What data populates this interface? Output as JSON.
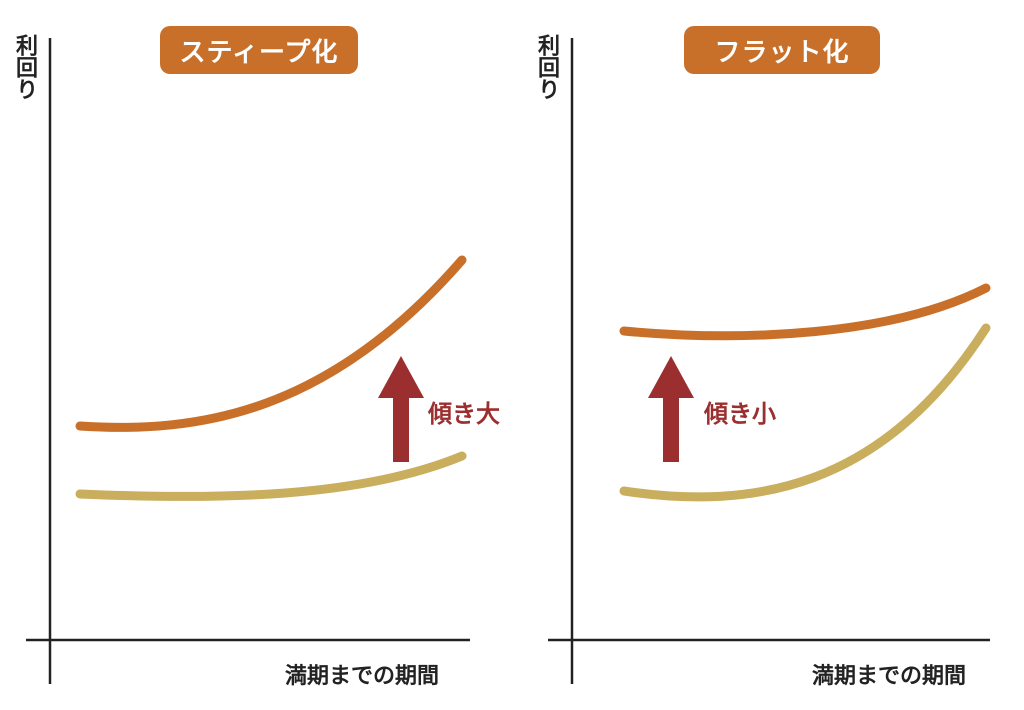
{
  "colors": {
    "upper_curve": "#C8702A",
    "lower_curve": "#C9AE5E",
    "arrow": "#9B2E2E",
    "badge_bg": "#C8702A",
    "axis": "#222222"
  },
  "panels": [
    {
      "title": "スティープ化",
      "ylabel": "利回り",
      "xlabel": "満期までの期間",
      "arrow_label": "傾き大",
      "arrow_icon": "arrow-up-icon"
    },
    {
      "title": "フラット化",
      "ylabel": "利回り",
      "xlabel": "満期までの期間",
      "arrow_label": "傾き小",
      "arrow_icon": "arrow-up-icon"
    }
  ]
}
